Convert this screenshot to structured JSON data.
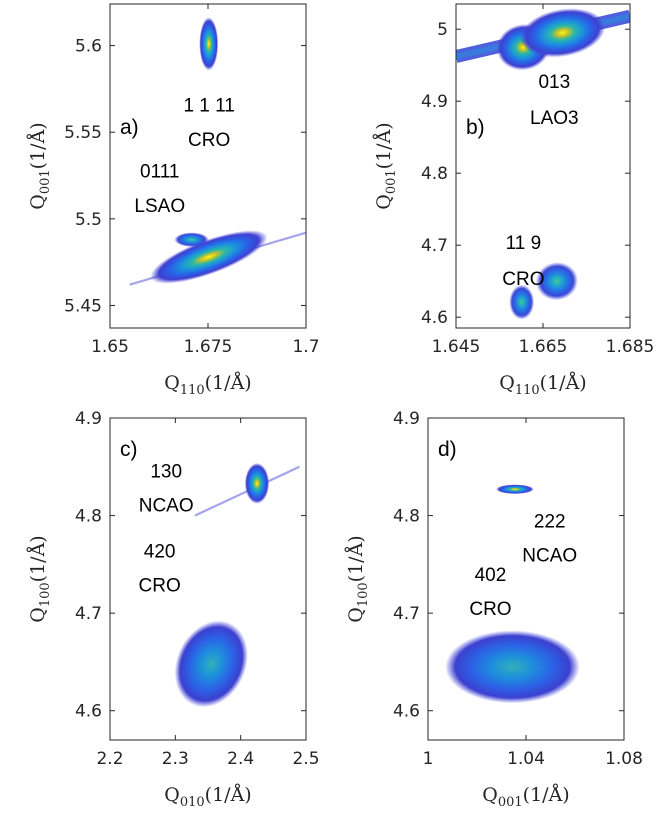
{
  "chart_data": [
    {
      "type": "heatmap",
      "panel": "a)",
      "xlabel_main": "Q",
      "xlabel_sub": "110",
      "xlabel_unit": "(1/Å)",
      "ylabel_main": "Q",
      "ylabel_sub": "001",
      "ylabel_unit": "(1/Å)",
      "xlim": [
        1.65,
        1.7
      ],
      "ylim": [
        5.437,
        5.624
      ],
      "xticks": [
        1.65,
        1.675,
        1.7
      ],
      "xtick_labels": [
        "1.65",
        "1.675",
        "1.7"
      ],
      "yticks": [
        5.45,
        5.5,
        5.55,
        5.6
      ],
      "ytick_labels": [
        "5.45",
        "5.5",
        "5.55",
        "5.6"
      ],
      "annotations": [
        {
          "text": "1 1 11",
          "x": 1.6753,
          "y": 5.562
        },
        {
          "text": "CRO",
          "x": 1.6753,
          "y": 5.542
        },
        {
          "text": "0111",
          "x": 1.6627,
          "y": 5.524
        },
        {
          "text": "LSAO",
          "x": 1.6627,
          "y": 5.504
        }
      ],
      "peaks": [
        {
          "x": 1.6752,
          "y": 5.601,
          "sx": 0.0011,
          "sy": 0.007,
          "rot": 0,
          "intensity": 0.9
        },
        {
          "x": 1.6752,
          "y": 5.478,
          "sx": 0.0072,
          "sy": 0.0045,
          "rot": -20,
          "intensity": 1.0
        },
        {
          "x": 1.6708,
          "y": 5.488,
          "sx": 0.002,
          "sy": 0.0019,
          "rot": 0,
          "intensity": 0.7
        }
      ],
      "streaks": [
        {
          "x1": 1.655,
          "y1": 5.462,
          "x2": 1.7,
          "y2": 5.492
        }
      ]
    },
    {
      "type": "heatmap",
      "panel": "b)",
      "xlabel_main": "Q",
      "xlabel_sub": "110",
      "xlabel_unit": "(1/Å)",
      "ylabel_main": "Q",
      "ylabel_sub": "001",
      "ylabel_unit": "(1/Å)",
      "xlim": [
        1.645,
        1.685
      ],
      "ylim": [
        4.585,
        5.035
      ],
      "xticks": [
        1.645,
        1.665,
        1.685
      ],
      "xtick_labels": [
        "1.645",
        "1.665",
        "1.685"
      ],
      "yticks": [
        4.6,
        4.7,
        4.8,
        4.9,
        5.0
      ],
      "ytick_labels": [
        "4.6",
        "4.7",
        "4.8",
        "4.9",
        "5"
      ],
      "annotations": [
        {
          "text": "013",
          "x": 1.6676,
          "y": 4.918
        },
        {
          "text": "LAO3",
          "x": 1.6676,
          "y": 4.868
        },
        {
          "text": "11 9",
          "x": 1.6605,
          "y": 4.695
        },
        {
          "text": "CRO",
          "x": 1.6605,
          "y": 4.645
        }
      ],
      "peaks": [
        {
          "x": 1.6605,
          "y": 4.975,
          "sx": 0.0028,
          "sy": 0.0145,
          "rot": -10,
          "intensity": 0.95
        },
        {
          "x": 1.6695,
          "y": 4.995,
          "sx": 0.0045,
          "sy": 0.015,
          "rot": -10,
          "intensity": 1.0
        },
        {
          "x": 1.6601,
          "y": 4.621,
          "sx": 0.0013,
          "sy": 0.011,
          "rot": 0,
          "intensity": 0.8
        },
        {
          "x": 1.6682,
          "y": 4.65,
          "sx": 0.0022,
          "sy": 0.012,
          "rot": -8,
          "intensity": 0.85
        }
      ],
      "bands": [
        {
          "x1": 1.645,
          "y1": 4.962,
          "x2": 1.685,
          "y2": 5.018,
          "width": 0.018
        }
      ]
    },
    {
      "type": "heatmap",
      "panel": "c)",
      "xlabel_main": "Q",
      "xlabel_sub": "010",
      "xlabel_unit": "(1/Å)",
      "ylabel_main": "Q",
      "ylabel_sub": "100",
      "ylabel_unit": "(1/Å)",
      "xlim": [
        2.2,
        2.5
      ],
      "ylim": [
        4.57,
        4.9
      ],
      "xticks": [
        2.2,
        2.3,
        2.4,
        2.5
      ],
      "xtick_labels": [
        "2.2",
        "2.3",
        "2.4",
        "2.5"
      ],
      "yticks": [
        4.6,
        4.7,
        4.8,
        4.9
      ],
      "ytick_labels": [
        "4.6",
        "4.7",
        "4.8",
        "4.9"
      ],
      "annotations": [
        {
          "text": "130",
          "x": 2.286,
          "y": 4.839
        },
        {
          "text": "NCAO",
          "x": 2.286,
          "y": 4.804
        },
        {
          "text": "420",
          "x": 2.276,
          "y": 4.757
        },
        {
          "text": "CRO",
          "x": 2.276,
          "y": 4.722
        }
      ],
      "peaks": [
        {
          "x": 2.425,
          "y": 4.833,
          "sx": 0.0085,
          "sy": 0.0095,
          "rot": 0,
          "intensity": 1.0
        },
        {
          "x": 2.355,
          "y": 4.648,
          "sx": 0.024,
          "sy": 0.021,
          "rot": 25,
          "intensity": 0.55
        }
      ],
      "streaks": [
        {
          "x1": 2.33,
          "y1": 4.8,
          "x2": 2.49,
          "y2": 4.85
        }
      ]
    },
    {
      "type": "heatmap",
      "panel": "d)",
      "xlabel_main": "Q",
      "xlabel_sub": "001",
      "xlabel_unit": "(1/Å)",
      "ylabel_main": "Q",
      "ylabel_sub": "100",
      "ylabel_unit": "(1/Å)",
      "xlim": [
        1.0,
        1.08
      ],
      "ylim": [
        4.57,
        4.9
      ],
      "xticks": [
        1.0,
        1.04,
        1.08
      ],
      "xtick_labels": [
        "1",
        "1.04",
        "1.08"
      ],
      "yticks": [
        4.6,
        4.7,
        4.8,
        4.9
      ],
      "ytick_labels": [
        "4.6",
        "4.7",
        "4.8",
        "4.9"
      ],
      "annotations": [
        {
          "text": "222",
          "x": 1.0497,
          "y": 4.788
        },
        {
          "text": "NCAO",
          "x": 1.0497,
          "y": 4.753
        },
        {
          "text": "402",
          "x": 1.0255,
          "y": 4.733
        },
        {
          "text": "CRO",
          "x": 1.0255,
          "y": 4.698
        }
      ],
      "peaks": [
        {
          "x": 1.0355,
          "y": 4.827,
          "sx": 0.0035,
          "sy": 0.0022,
          "rot": 0,
          "intensity": 1.0
        },
        {
          "x": 1.0345,
          "y": 4.645,
          "sx": 0.0125,
          "sy": 0.017,
          "rot": 0,
          "intensity": 0.45
        }
      ]
    }
  ]
}
